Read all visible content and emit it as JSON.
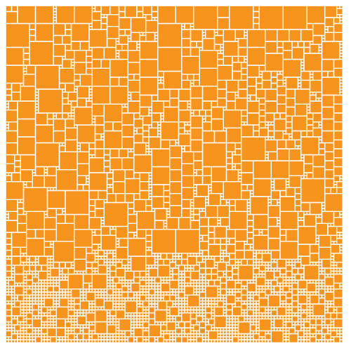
{
  "colors": {
    "background": "#ffffff",
    "tile_fill": "#F7941D",
    "gap": "#ffffff"
  },
  "pattern": {
    "description_type": "square-packing-mosaic",
    "seed": 20240517
  }
}
